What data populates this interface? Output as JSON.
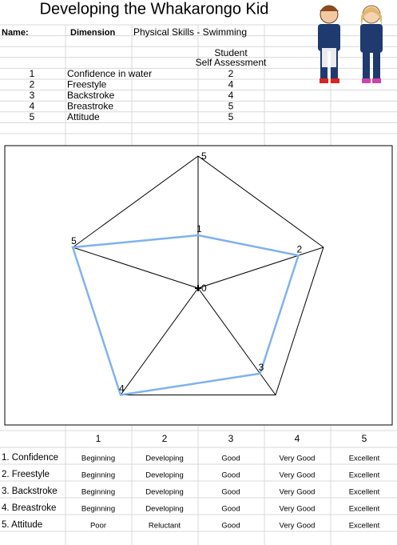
{
  "title": "Developing the Whakarongo Kid",
  "name_label": "Name:",
  "dimension_label": "Dimension",
  "dimension": "Physical Skills - Swimming",
  "assessment_header": [
    "Student",
    "Self Assessment"
  ],
  "items": [
    {
      "no": 1,
      "skill": "Confidence in water",
      "score": 2
    },
    {
      "no": 2,
      "skill": "Freestyle",
      "score": 4
    },
    {
      "no": 3,
      "skill": "Backstroke",
      "score": 4
    },
    {
      "no": 4,
      "skill": "Breastroke",
      "score": 5
    },
    {
      "no": 5,
      "skill": "Attitude",
      "score": 5
    }
  ],
  "chart_data": {
    "type": "radar",
    "categories": [
      "1",
      "2",
      "3",
      "4",
      "5"
    ],
    "values": [
      2,
      4,
      4,
      5,
      5
    ],
    "color": "#7fb2f0",
    "ylim": [
      0,
      5
    ],
    "yticks": [
      0,
      5
    ],
    "grid": true
  },
  "rubric": {
    "levels": [
      1,
      2,
      3,
      4,
      5
    ],
    "rows": [
      {
        "label": "1. Confidence",
        "cells": [
          "Beginning",
          "Developing",
          "Good",
          "Very Good",
          "Excellent"
        ]
      },
      {
        "label": "2. Freestyle",
        "cells": [
          "Beginning",
          "Developing",
          "Good",
          "Very Good",
          "Excellent"
        ]
      },
      {
        "label": "3. Backstroke",
        "cells": [
          "Beginning",
          "Developing",
          "Good",
          "Very Good",
          "Excellent"
        ]
      },
      {
        "label": "4. Breastroke",
        "cells": [
          "Beginning",
          "Developing",
          "Good",
          "Very Good",
          "Excellent"
        ]
      },
      {
        "label": "5. Attitude",
        "cells": [
          "Poor",
          "Reluctant",
          "Good",
          "Very Good",
          "Excellent"
        ]
      }
    ]
  }
}
